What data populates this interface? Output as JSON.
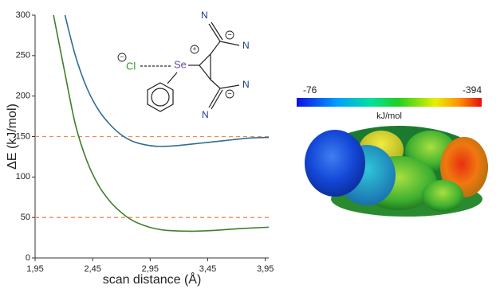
{
  "chart_data": {
    "type": "line",
    "xlabel": "scan distance (Å)",
    "ylabel": "ΔE (kJ/mol)",
    "xlim": [
      1.95,
      3.98
    ],
    "ylim": [
      0,
      300
    ],
    "xticks": [
      {
        "value": 1.95,
        "label": "1,95"
      },
      {
        "value": 2.45,
        "label": "2,45"
      },
      {
        "value": 2.95,
        "label": "2,95"
      },
      {
        "value": 3.45,
        "label": "3,45"
      },
      {
        "value": 3.95,
        "label": "3,95"
      }
    ],
    "yticks": [
      0,
      50,
      100,
      150,
      200,
      250,
      300
    ],
    "series": [
      {
        "color": "#2e6e96",
        "x": [
          2.21,
          2.3,
          2.4,
          2.5,
          2.6,
          2.7,
          2.8,
          2.9,
          3.0,
          3.1,
          3.2,
          3.4,
          3.6,
          3.8,
          3.98
        ],
        "values": [
          300,
          250,
          210,
          183,
          165,
          152,
          144,
          140,
          138,
          138,
          139,
          142,
          145,
          148,
          149
        ]
      },
      {
        "color": "#3f7f2a",
        "x": [
          2.11,
          2.2,
          2.3,
          2.4,
          2.5,
          2.6,
          2.7,
          2.8,
          2.9,
          3.0,
          3.1,
          3.3,
          3.5,
          3.7,
          3.98
        ],
        "values": [
          300,
          235,
          165,
          120,
          90,
          70,
          56,
          46,
          40,
          36,
          34,
          33,
          34,
          36,
          38
        ]
      }
    ],
    "reference_lines": {
      "values": [
        50,
        150
      ],
      "color": "#f08a4b"
    }
  },
  "molecule": {
    "anion": "Cl",
    "selenium": "Se",
    "nitrogens": [
      "N",
      "N",
      "N",
      "N"
    ],
    "negative_charge": "−",
    "positive_charge": "+"
  },
  "colorbar": {
    "min_label": "-76",
    "max_label": "-394",
    "unit": "kJ/mol"
  }
}
